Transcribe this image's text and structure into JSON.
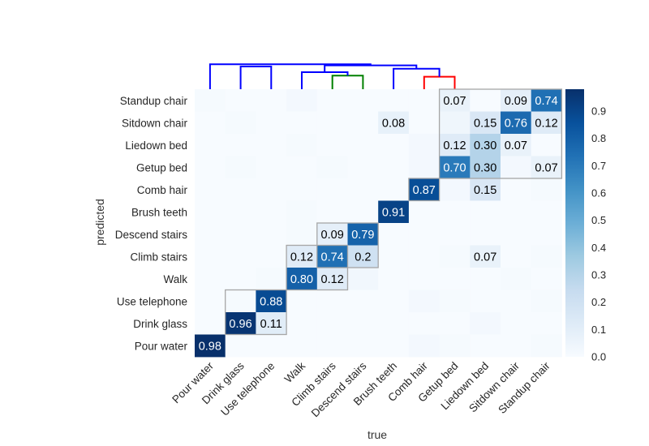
{
  "chart_data": {
    "type": "heatmap",
    "xlabel": "true",
    "ylabel": "predicted",
    "x_categories": [
      "Pour water",
      "Drink glass",
      "Use telephone",
      "Walk",
      "Climb stairs",
      "Descend stairs",
      "Brush teeth",
      "Comb hair",
      "Getup bed",
      "Liedown bed",
      "Sitdown chair",
      "Standup chair"
    ],
    "y_categories": [
      "Standup chair",
      "Sitdown chair",
      "Liedown bed",
      "Getup bed",
      "Comb hair",
      "Brush teeth",
      "Descend stairs",
      "Climb stairs",
      "Walk",
      "Use telephone",
      "Drink glass",
      "Pour water"
    ],
    "values": [
      [
        0.01,
        0.0,
        0.0,
        0.02,
        0.0,
        0.0,
        0.0,
        0.0,
        0.07,
        0.0,
        0.09,
        0.74
      ],
      [
        0.0,
        0.01,
        0.0,
        0.0,
        0.0,
        0.0,
        0.08,
        0.0,
        0.04,
        0.15,
        0.76,
        0.12
      ],
      [
        0.0,
        0.0,
        0.0,
        0.01,
        0.0,
        0.0,
        0.0,
        0.02,
        0.12,
        0.3,
        0.07,
        0.0
      ],
      [
        0.0,
        0.01,
        0.0,
        0.0,
        0.01,
        0.0,
        0.0,
        0.02,
        0.7,
        0.3,
        0.02,
        0.07
      ],
      [
        0.0,
        0.0,
        0.0,
        0.0,
        0.0,
        0.0,
        0.0,
        0.87,
        0.02,
        0.15,
        0.0,
        0.01
      ],
      [
        0.0,
        0.0,
        0.0,
        0.01,
        0.0,
        0.0,
        0.91,
        0.0,
        0.0,
        0.0,
        0.0,
        0.0
      ],
      [
        0.0,
        0.0,
        0.0,
        0.01,
        0.09,
        0.79,
        0.0,
        0.0,
        0.0,
        0.0,
        0.0,
        0.0
      ],
      [
        0.0,
        0.0,
        0.0,
        0.12,
        0.74,
        0.2,
        0.0,
        0.0,
        0.01,
        0.07,
        0.0,
        0.01
      ],
      [
        0.0,
        0.0,
        0.01,
        0.8,
        0.12,
        0.03,
        0.0,
        0.0,
        0.0,
        0.0,
        0.01,
        0.0
      ],
      [
        0.0,
        0.01,
        0.88,
        0.0,
        0.0,
        0.0,
        0.0,
        0.02,
        0.01,
        0.0,
        0.0,
        0.01
      ],
      [
        0.0,
        0.96,
        0.11,
        0.0,
        0.0,
        0.0,
        0.0,
        0.0,
        0.0,
        0.02,
        0.0,
        0.0
      ],
      [
        0.98,
        0.0,
        0.0,
        0.0,
        0.0,
        0.0,
        0.0,
        0.02,
        0.01,
        0.0,
        0.0,
        0.01
      ]
    ],
    "annotations": [
      {
        "row": 0,
        "col": 8,
        "label": "0.07"
      },
      {
        "row": 0,
        "col": 10,
        "label": "0.09"
      },
      {
        "row": 0,
        "col": 11,
        "label": "0.74"
      },
      {
        "row": 1,
        "col": 6,
        "label": "0.08"
      },
      {
        "row": 1,
        "col": 9,
        "label": "0.15"
      },
      {
        "row": 1,
        "col": 10,
        "label": "0.76"
      },
      {
        "row": 1,
        "col": 11,
        "label": "0.12"
      },
      {
        "row": 2,
        "col": 8,
        "label": "0.12"
      },
      {
        "row": 2,
        "col": 9,
        "label": "0.30"
      },
      {
        "row": 2,
        "col": 10,
        "label": "0.07"
      },
      {
        "row": 3,
        "col": 8,
        "label": "0.70"
      },
      {
        "row": 3,
        "col": 9,
        "label": "0.30"
      },
      {
        "row": 3,
        "col": 11,
        "label": "0.07"
      },
      {
        "row": 4,
        "col": 7,
        "label": "0.87"
      },
      {
        "row": 4,
        "col": 9,
        "label": "0.15"
      },
      {
        "row": 5,
        "col": 6,
        "label": "0.91"
      },
      {
        "row": 6,
        "col": 4,
        "label": "0.09"
      },
      {
        "row": 6,
        "col": 5,
        "label": "0.79"
      },
      {
        "row": 7,
        "col": 3,
        "label": "0.12"
      },
      {
        "row": 7,
        "col": 4,
        "label": "0.74"
      },
      {
        "row": 7,
        "col": 5,
        "label": "0.2"
      },
      {
        "row": 7,
        "col": 9,
        "label": "0.07"
      },
      {
        "row": 8,
        "col": 3,
        "label": "0.80"
      },
      {
        "row": 8,
        "col": 4,
        "label": "0.12"
      },
      {
        "row": 9,
        "col": 2,
        "label": "0.88"
      },
      {
        "row": 10,
        "col": 1,
        "label": "0.96"
      },
      {
        "row": 10,
        "col": 2,
        "label": "0.11"
      },
      {
        "row": 11,
        "col": 0,
        "label": "0.98"
      }
    ],
    "cluster_boxes": [
      {
        "cols": [
          1,
          2
        ],
        "rows": [
          9,
          10
        ]
      },
      {
        "cols": [
          3,
          4
        ],
        "rows": [
          7,
          8
        ]
      },
      {
        "cols": [
          4,
          5
        ],
        "rows": [
          6,
          7
        ]
      },
      {
        "cols": [
          7,
          7
        ],
        "rows": [
          4,
          4
        ]
      },
      {
        "cols": [
          8,
          11
        ],
        "rows": [
          0,
          3
        ]
      }
    ],
    "dendrogram": [
      {
        "members": [
          1,
          2
        ],
        "height": 1.0,
        "color": "#0000ff"
      },
      {
        "members": [
          4,
          5
        ],
        "height": 0.6,
        "color": "#008000"
      },
      {
        "members": [
          3,
          4,
          5
        ],
        "height": 0.75,
        "color": "#0000ff"
      },
      {
        "members": [
          7,
          8,
          9,
          10,
          11
        ],
        "height": 0.55,
        "color": "#ff0000"
      },
      {
        "members": [
          6,
          7,
          8,
          9,
          10,
          11
        ],
        "height": 0.9,
        "color": "#0000ff"
      },
      {
        "members": [
          3,
          4,
          5,
          6,
          7,
          8,
          9,
          10,
          11
        ],
        "height": 1.05,
        "color": "#0000ff"
      },
      {
        "members": [
          0,
          1,
          2,
          3,
          4,
          5,
          6,
          7,
          8,
          9,
          10,
          11
        ],
        "height": 1.1,
        "color": "#0000ff"
      }
    ],
    "colorbar": {
      "range": [
        0.0,
        0.98
      ],
      "ticks": [
        "0.0",
        "0.1",
        "0.2",
        "0.3",
        "0.4",
        "0.5",
        "0.6",
        "0.7",
        "0.8",
        "0.9"
      ]
    },
    "colormap": [
      "#f7fbff",
      "#deebf7",
      "#c6dbef",
      "#9ecae1",
      "#6baed6",
      "#4292c6",
      "#2171b5",
      "#08519c",
      "#08306b"
    ]
  }
}
